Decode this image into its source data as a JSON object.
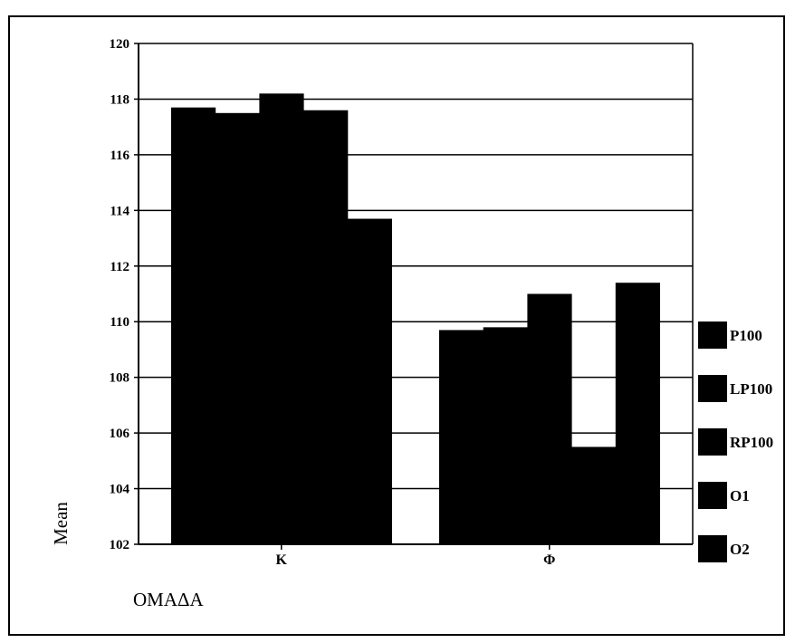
{
  "chart_data": {
    "type": "bar",
    "title": "",
    "xlabel": "OMAΔA",
    "ylabel": "Mean",
    "categories": [
      "K",
      "Φ"
    ],
    "ylim": [
      102,
      120
    ],
    "yticks": [
      102,
      104,
      106,
      108,
      110,
      112,
      114,
      116,
      118,
      120
    ],
    "grid": true,
    "legend_position": "right",
    "series": [
      {
        "name": "P100",
        "values": [
          117.7,
          109.7
        ]
      },
      {
        "name": "LP100",
        "values": [
          117.5,
          109.8
        ]
      },
      {
        "name": "RP100",
        "values": [
          118.2,
          111.0
        ]
      },
      {
        "name": "O1",
        "values": [
          117.6,
          105.5
        ]
      },
      {
        "name": "O2",
        "values": [
          113.7,
          111.4
        ]
      }
    ],
    "colors": {
      "bar": "#000000",
      "grid": "#000000",
      "background": "#ffffff"
    }
  }
}
